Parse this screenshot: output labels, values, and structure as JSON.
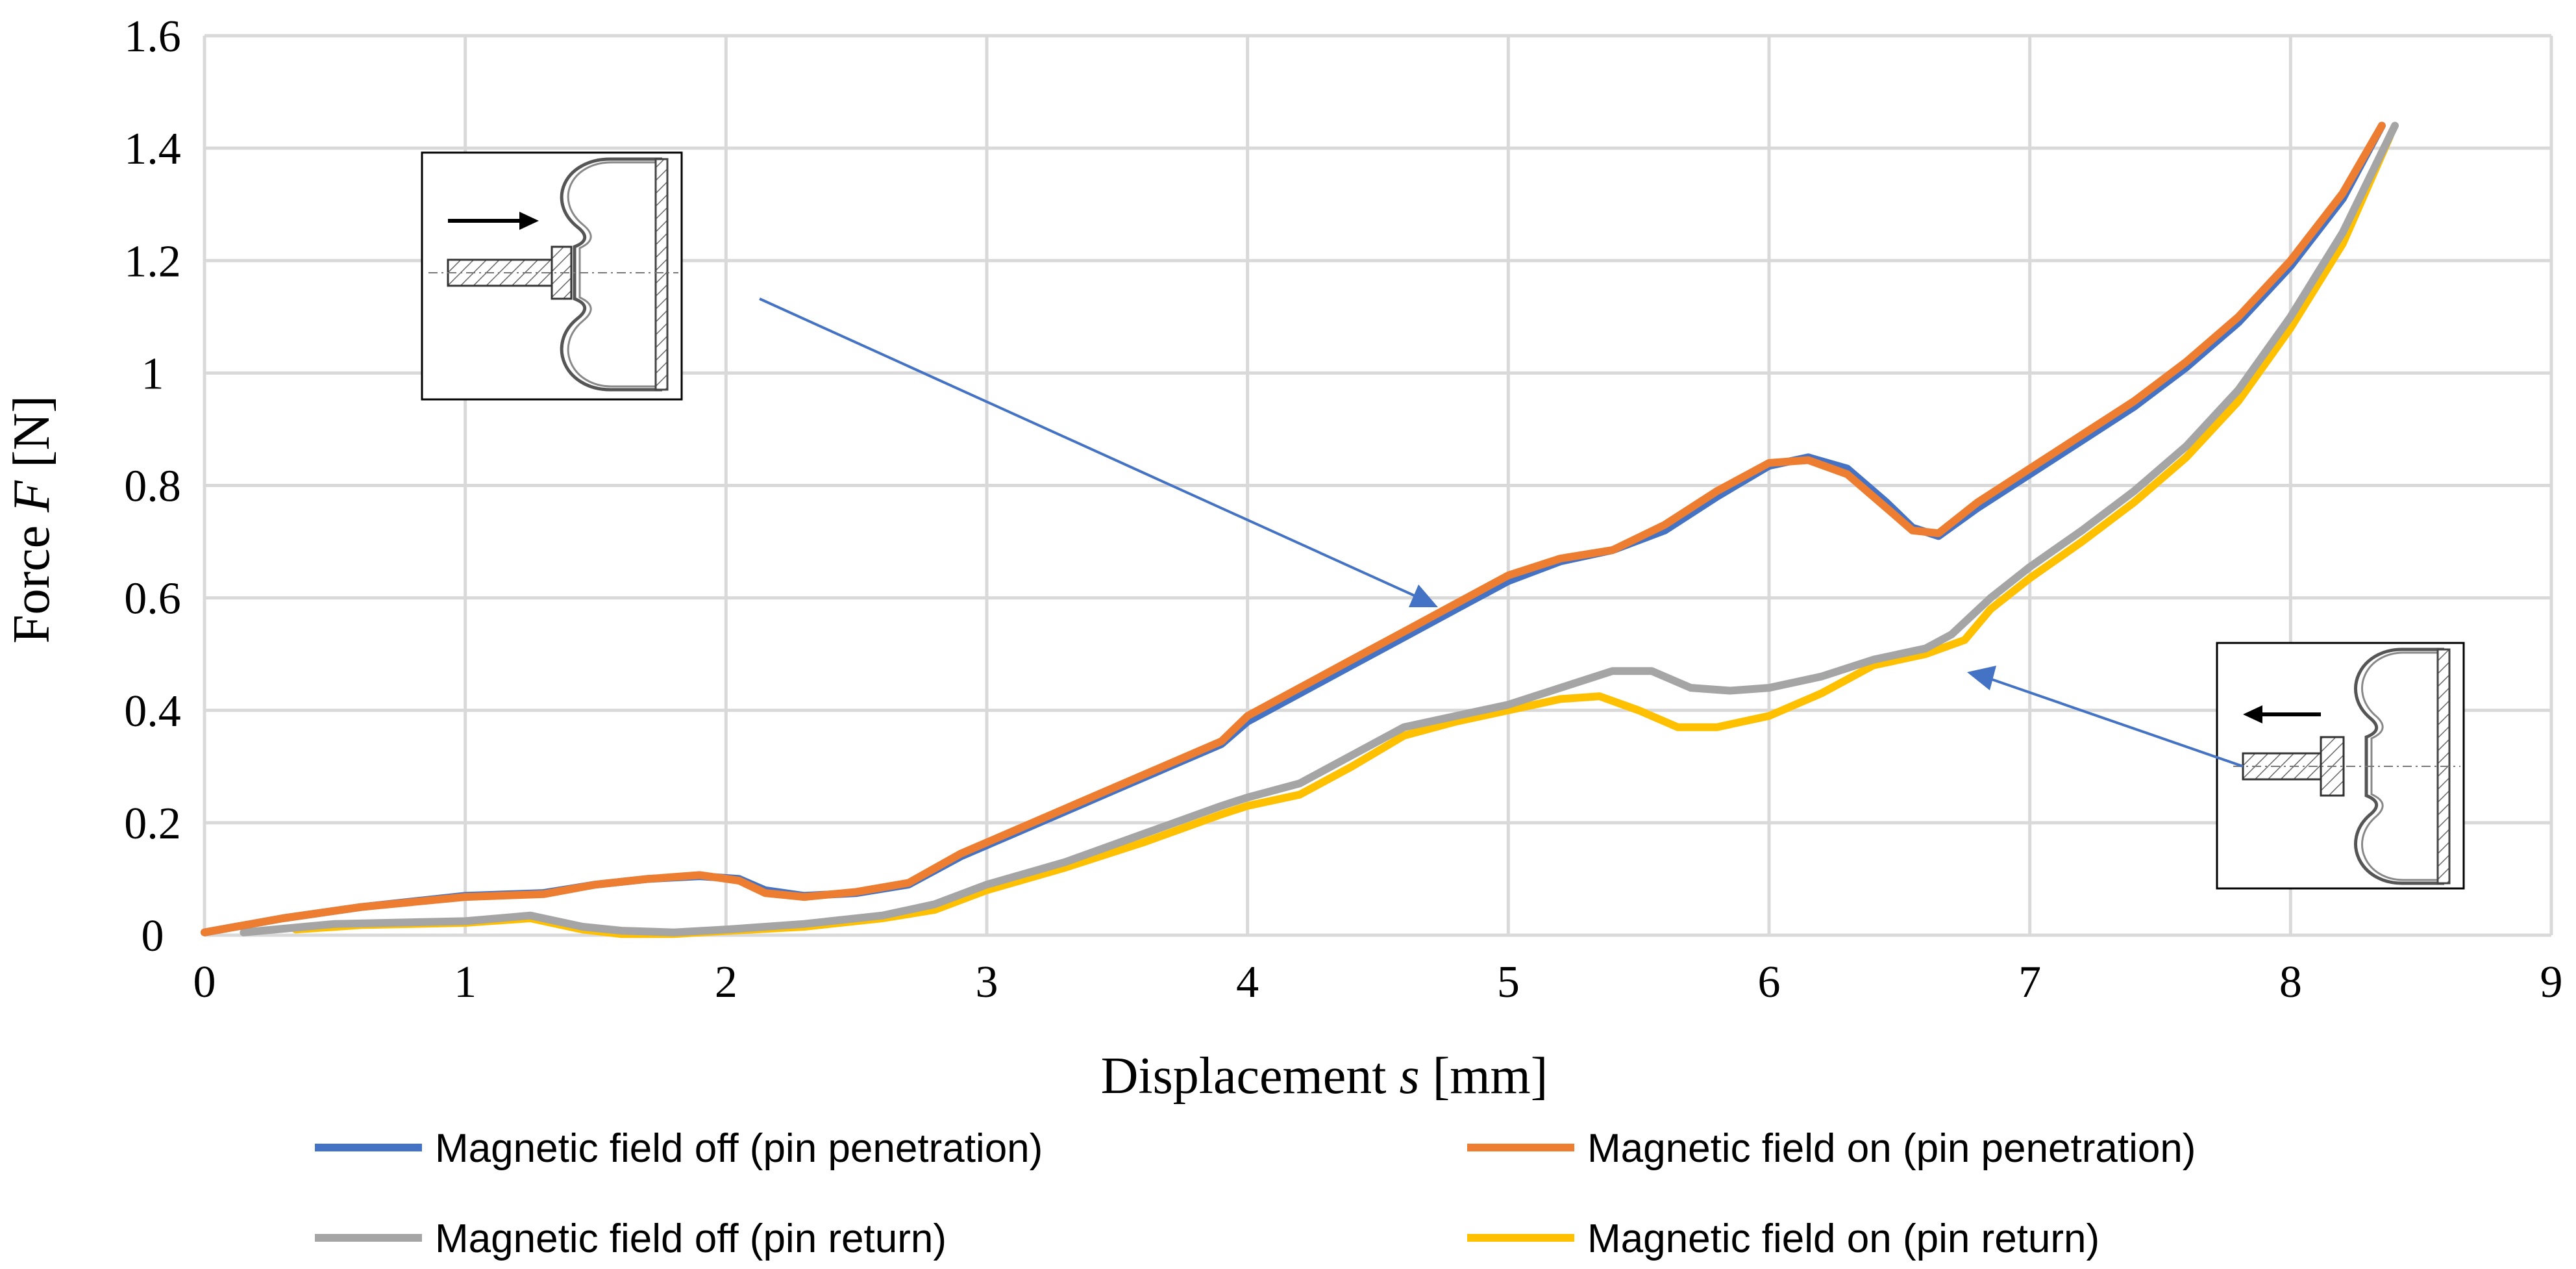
{
  "chart_data": {
    "type": "line",
    "title": "",
    "xlabel": {
      "prefix": "Displacement ",
      "symbol": "s",
      "suffix": " [mm]"
    },
    "ylabel": {
      "prefix": "Force ",
      "symbol": "F",
      "suffix": " [N]"
    },
    "xlim": [
      0,
      9
    ],
    "ylim": [
      0,
      1.6
    ],
    "xticks": [
      "0",
      "1",
      "2",
      "3",
      "4",
      "5",
      "6",
      "7",
      "8",
      "9"
    ],
    "yticks": [
      "0",
      "0.2",
      "0.4",
      "0.6",
      "0.8",
      "1",
      "1.2",
      "1.4",
      "1.6"
    ],
    "grid": true,
    "legend_position": "bottom",
    "series": [
      {
        "name": "Magnetic field off (pin penetration)",
        "color": "#4472C4",
        "x": [
          0,
          0.3,
          0.6,
          1.0,
          1.3,
          1.5,
          1.7,
          1.9,
          2.05,
          2.15,
          2.3,
          2.5,
          2.7,
          2.9,
          3.1,
          3.3,
          3.5,
          3.7,
          3.9,
          4.0,
          4.2,
          4.4,
          4.6,
          4.8,
          5.0,
          5.2,
          5.4,
          5.6,
          5.8,
          6.0,
          6.15,
          6.3,
          6.45,
          6.55,
          6.65,
          6.8,
          7.0,
          7.2,
          7.4,
          7.6,
          7.8,
          8.0,
          8.2,
          8.35
        ],
        "y": [
          0.005,
          0.03,
          0.05,
          0.07,
          0.075,
          0.09,
          0.1,
          0.105,
          0.1,
          0.08,
          0.07,
          0.075,
          0.09,
          0.14,
          0.18,
          0.22,
          0.26,
          0.3,
          0.34,
          0.38,
          0.43,
          0.48,
          0.53,
          0.58,
          0.63,
          0.665,
          0.685,
          0.72,
          0.78,
          0.835,
          0.85,
          0.83,
          0.77,
          0.725,
          0.71,
          0.76,
          0.82,
          0.88,
          0.94,
          1.01,
          1.09,
          1.19,
          1.31,
          1.44
        ]
      },
      {
        "name": "Magnetic field on (pin penetration)",
        "color": "#ED7D31",
        "x": [
          0,
          0.3,
          0.6,
          1.0,
          1.3,
          1.5,
          1.7,
          1.9,
          2.05,
          2.15,
          2.3,
          2.5,
          2.7,
          2.9,
          3.1,
          3.3,
          3.5,
          3.7,
          3.9,
          4.0,
          4.2,
          4.4,
          4.6,
          4.8,
          5.0,
          5.2,
          5.4,
          5.6,
          5.8,
          6.0,
          6.15,
          6.3,
          6.45,
          6.55,
          6.65,
          6.8,
          7.0,
          7.2,
          7.4,
          7.6,
          7.8,
          8.0,
          8.2,
          8.35
        ],
        "y": [
          0.005,
          0.03,
          0.05,
          0.068,
          0.073,
          0.09,
          0.1,
          0.107,
          0.097,
          0.075,
          0.068,
          0.077,
          0.093,
          0.145,
          0.185,
          0.225,
          0.265,
          0.305,
          0.345,
          0.39,
          0.44,
          0.49,
          0.54,
          0.59,
          0.64,
          0.67,
          0.685,
          0.73,
          0.79,
          0.84,
          0.845,
          0.82,
          0.76,
          0.72,
          0.715,
          0.77,
          0.83,
          0.89,
          0.95,
          1.02,
          1.1,
          1.2,
          1.32,
          1.44
        ]
      },
      {
        "name": "Magnetic field off (pin return)",
        "color": "#A5A5A5",
        "x": [
          0.15,
          0.5,
          1.0,
          1.25,
          1.45,
          1.6,
          1.8,
          2.0,
          2.3,
          2.6,
          2.8,
          3.0,
          3.3,
          3.6,
          3.9,
          4.0,
          4.2,
          4.4,
          4.6,
          4.8,
          5.0,
          5.2,
          5.4,
          5.55,
          5.7,
          5.85,
          6.0,
          6.2,
          6.4,
          6.6,
          6.7,
          6.85,
          7.0,
          7.2,
          7.4,
          7.6,
          7.8,
          8.0,
          8.2,
          8.4
        ],
        "y": [
          0.005,
          0.02,
          0.025,
          0.035,
          0.015,
          0.008,
          0.005,
          0.01,
          0.02,
          0.035,
          0.055,
          0.09,
          0.13,
          0.18,
          0.23,
          0.245,
          0.27,
          0.32,
          0.37,
          0.39,
          0.41,
          0.44,
          0.47,
          0.47,
          0.44,
          0.435,
          0.44,
          0.46,
          0.49,
          0.51,
          0.535,
          0.6,
          0.655,
          0.72,
          0.79,
          0.87,
          0.97,
          1.1,
          1.25,
          1.44
        ]
      },
      {
        "name": "Magnetic field on (pin return)",
        "color": "#FFC000",
        "x": [
          0.35,
          0.6,
          1.0,
          1.25,
          1.45,
          1.6,
          1.8,
          1.9,
          2.3,
          2.6,
          2.8,
          3.0,
          3.3,
          3.6,
          3.9,
          4.0,
          4.2,
          4.4,
          4.6,
          4.8,
          5.0,
          5.2,
          5.35,
          5.5,
          5.65,
          5.8,
          6.0,
          6.2,
          6.4,
          6.6,
          6.75,
          6.85,
          7.0,
          7.2,
          7.4,
          7.6,
          7.8,
          8.0,
          8.2,
          8.38
        ],
        "y": [
          0.01,
          0.018,
          0.022,
          0.03,
          0.01,
          0.002,
          0.002,
          0.005,
          0.015,
          0.03,
          0.045,
          0.08,
          0.12,
          0.165,
          0.215,
          0.23,
          0.25,
          0.3,
          0.355,
          0.38,
          0.4,
          0.42,
          0.425,
          0.4,
          0.37,
          0.37,
          0.39,
          0.43,
          0.48,
          0.5,
          0.525,
          0.58,
          0.635,
          0.7,
          0.77,
          0.85,
          0.95,
          1.08,
          1.23,
          1.42
        ]
      }
    ]
  }
}
